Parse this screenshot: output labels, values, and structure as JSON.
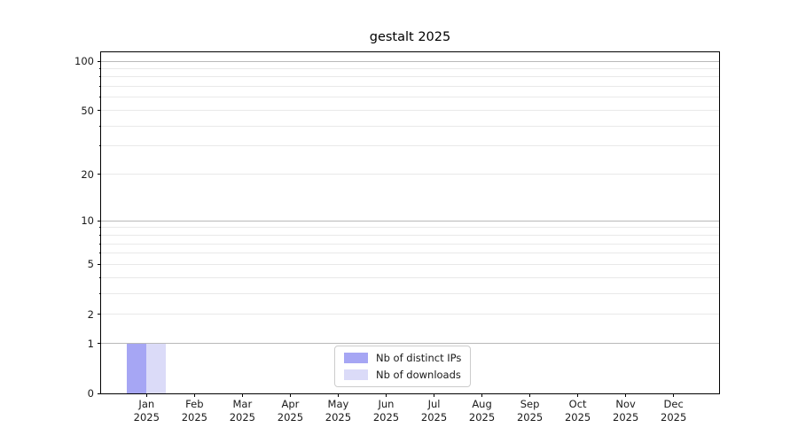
{
  "chart_data": {
    "type": "bar",
    "title": "gestalt 2025",
    "categories": [
      "Jan",
      "Feb",
      "Mar",
      "Apr",
      "May",
      "Jun",
      "Jul",
      "Aug",
      "Sep",
      "Oct",
      "Nov",
      "Dec"
    ],
    "x_year_line": "2025",
    "series": [
      {
        "name": "Nb of distinct IPs",
        "color": "#a6a6f4",
        "values": [
          1,
          0,
          0,
          0,
          0,
          0,
          0,
          0,
          0,
          0,
          0,
          0
        ]
      },
      {
        "name": "Nb of downloads",
        "color": "#dbdbf8",
        "values": [
          1,
          0,
          0,
          0,
          0,
          0,
          0,
          0,
          0,
          0,
          0,
          0
        ]
      }
    ],
    "xlabel": "",
    "ylabel": "",
    "yscale": "log1p",
    "ylim": [
      0,
      113
    ],
    "yticks_labeled": [
      0,
      1,
      2,
      5,
      10,
      20,
      50,
      100
    ],
    "yticks_major_grid": [
      1,
      10,
      100
    ],
    "yticks_minor_grid": [
      2,
      3,
      4,
      5,
      6,
      7,
      8,
      9,
      20,
      30,
      40,
      50,
      60,
      70,
      80,
      90
    ],
    "grid": "horizontal",
    "legend_position": "lower center",
    "colors": {
      "grid_major": "#b9b9b9",
      "grid_minor": "#e9e9e9",
      "spine": "#000000",
      "text": "#1a1a1a",
      "legend_border": "#cccccc",
      "background": "#ffffff"
    }
  }
}
